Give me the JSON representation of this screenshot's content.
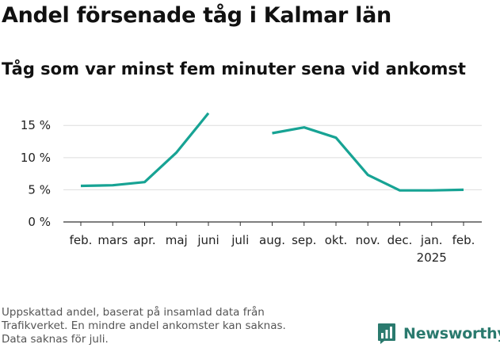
{
  "header": {
    "title": "Andel försenade tåg i Kalmar län",
    "subtitle": "Tåg som var minst fem minuter sena vid ankomst"
  },
  "footer": {
    "note_lines": [
      "Uppskattad andel, baserat på insamlad data från",
      "Trafikverket. En mindre andel ankomster kan saknas.",
      "Data saknas för juli."
    ],
    "brand": "Newsworthy"
  },
  "colors": {
    "line": "#17a394",
    "grid": "#dddddd",
    "axis": "#333333",
    "brand": "#2a7a6e"
  },
  "chart_data": {
    "type": "line",
    "title": "Andel försenade tåg i Kalmar län",
    "subtitle": "Tåg som var minst fem minuter sena vid ankomst",
    "xlabel": "",
    "ylabel": "",
    "categories": [
      "feb.",
      "mars",
      "apr.",
      "maj",
      "juni",
      "juli",
      "aug.",
      "sep.",
      "okt.",
      "nov.",
      "dec.",
      "jan.",
      "feb."
    ],
    "year_label": {
      "category_index": 11,
      "text": "2025"
    },
    "series": [
      {
        "values": [
          5.6,
          5.7,
          6.2,
          10.8,
          16.9,
          null,
          13.8,
          14.7,
          13.1,
          7.3,
          4.9,
          4.9,
          5.0
        ]
      }
    ],
    "y_ticks": [
      0,
      5,
      10,
      15
    ],
    "y_tick_labels": [
      "0 %",
      "5 %",
      "10 %",
      "15 %"
    ],
    "ylim": [
      0,
      17
    ],
    "grid": true,
    "legend": "none"
  }
}
